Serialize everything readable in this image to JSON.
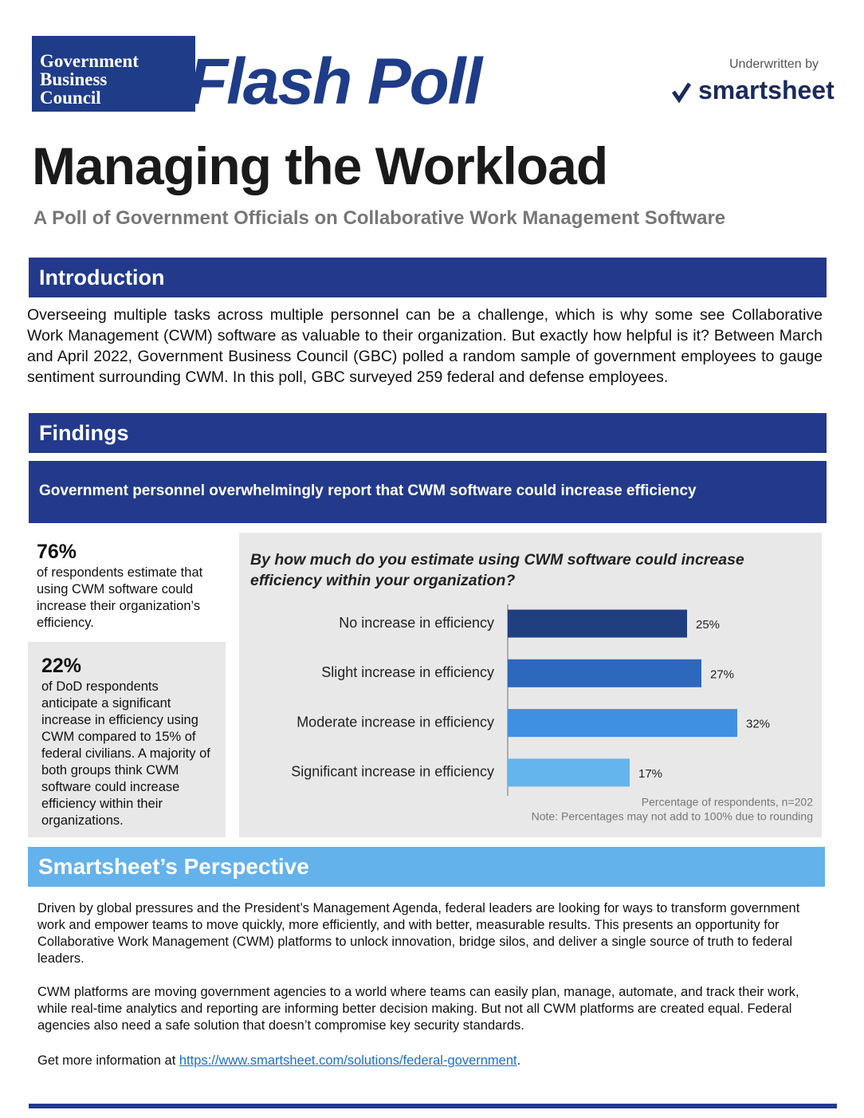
{
  "header": {
    "logo": [
      "Government",
      "Business",
      "Council"
    ],
    "flash_poll": "Flash Poll",
    "underwritten": "Underwritten by",
    "sponsor": "smartsheet"
  },
  "title": "Managing the Workload",
  "subtitle": "A Poll of Government Officials on Collaborative Work Management Software",
  "introduction": {
    "heading": "Introduction",
    "text": "Overseeing multiple tasks across multiple personnel can be a challenge, which is why some see Collaborative Work Management (CWM) software as valuable to their organization. But exactly how helpful is it? Between March and April 2022, Government Business Council (GBC) polled a random sample of government employees to gauge sentiment surrounding CWM. In this poll, GBC surveyed 259 federal and defense employees."
  },
  "findings": {
    "heading": "Findings",
    "banner": "Government personnel overwhelmingly report that CWM software could increase efficiency",
    "stats": [
      {
        "value": "76%",
        "text": "of respondents estimate that using CWM software could increase their organization’s efficiency."
      },
      {
        "value": "22%",
        "text": "of DoD respondents anticipate a significant increase in efficiency using CWM compared to 15% of federal civilians. A majority of both groups think CWM software could increase efficiency within their organizations."
      }
    ]
  },
  "chart_data": {
    "type": "bar",
    "orientation": "horizontal",
    "title": "By how much do you estimate using CWM software could increase efficiency within your organization?",
    "categories": [
      "No increase in efficiency",
      "Slight increase in efficiency",
      "Moderate increase in efficiency",
      "Significant increase in efficiency"
    ],
    "values": [
      25,
      27,
      32,
      17
    ],
    "value_labels": [
      "25%",
      "27%",
      "32%",
      "17%"
    ],
    "colors": [
      "#1f3f80",
      "#2d68bd",
      "#3f8fe2",
      "#64b4ee"
    ],
    "notes": [
      "Percentage of respondents, n=202",
      "Note: Percentages may not add to 100% due to rounding"
    ]
  },
  "perspective": {
    "heading": "Smartsheet’s Perspective",
    "paragraphs": [
      "Driven by global pressures and the President’s Management Agenda, federal leaders are looking for ways to transform government work and empower teams to move quickly, more efficiently, and with better, measurable results.  This presents an opportunity for Collaborative Work Management (CWM) platforms to unlock innovation, bridge silos, and deliver a single source of truth to federal leaders.",
      "CWM platforms are moving government agencies to a world where teams can easily plan, manage, automate, and track their work, while real-time analytics and reporting are informing better decision making. But not all CWM platforms are created equal. Federal agencies also need a safe solution that doesn’t compromise key security standards."
    ],
    "link_prefix": "Get more information at",
    "link": "https://www.smartsheet.com/solutions/federal-government",
    "link_suffix": "."
  }
}
